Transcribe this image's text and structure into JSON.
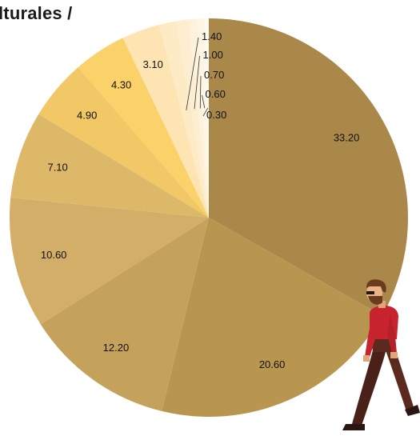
{
  "header": {
    "title_fragment": "lturales /"
  },
  "chart_data": {
    "type": "pie",
    "title": "lturales /",
    "values": [
      33.2,
      20.6,
      12.2,
      10.6,
      7.1,
      4.9,
      4.3,
      3.1,
      1.4,
      1.0,
      0.7,
      0.6,
      0.3
    ],
    "labels": [
      "33.20",
      "20.60",
      "12.20",
      "10.60",
      "7.10",
      "4.90",
      "4.30",
      "3.10",
      "1.40",
      "1.00",
      "0.70",
      "0.60",
      "0.30"
    ],
    "colors": [
      "#a9884a",
      "#b99650",
      "#c5a25c",
      "#d2ae68",
      "#ddb868",
      "#f2c766",
      "#fbd16a",
      "#fde4b2",
      "#fdebc6",
      "#fdeed2",
      "#fef2dc",
      "#fef5e5",
      "#fff9f0"
    ],
    "direction": "clockwise",
    "start": "top",
    "legend": "none"
  },
  "illustration": {
    "icon": "walking-man-illustration",
    "shirt_color": "#c8242f",
    "pants_color": "#5a2a1e",
    "hair_color": "#6a3b1c"
  }
}
